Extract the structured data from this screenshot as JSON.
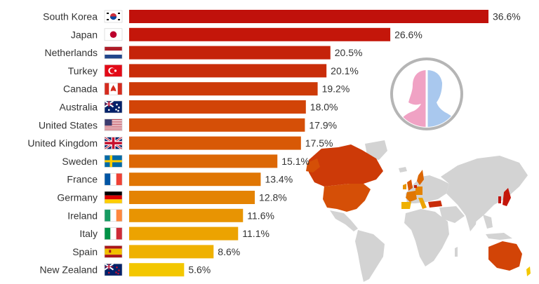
{
  "chart_data": {
    "type": "bar",
    "orientation": "horizontal",
    "title": "",
    "xlabel": "",
    "ylabel": "",
    "value_suffix": "%",
    "xlim": [
      0,
      36.6
    ],
    "grid": false,
    "legend": "none",
    "categories": [
      "South Korea",
      "Japan",
      "Netherlands",
      "Turkey",
      "Canada",
      "Australia",
      "United States",
      "United Kingdom",
      "Sweden",
      "France",
      "Germany",
      "Ireland",
      "Italy",
      "Spain",
      "New Zealand"
    ],
    "values": [
      36.6,
      26.6,
      20.5,
      20.1,
      19.2,
      18.0,
      17.9,
      17.5,
      15.1,
      13.4,
      12.8,
      11.6,
      11.1,
      8.6,
      5.6
    ],
    "value_labels": [
      "36.6%",
      "26.6%",
      "20.5%",
      "20.1%",
      "19.2%",
      "18.0%",
      "17.9%",
      "17.5%",
      "15.1%",
      "13.4%",
      "12.8%",
      "11.6%",
      "11.1%",
      "8.6%",
      "5.6%"
    ],
    "bar_colors": [
      "#c0110b",
      "#c4160a",
      "#c5230a",
      "#c92c09",
      "#cd3a08",
      "#d24407",
      "#d54f07",
      "#d85906",
      "#dc6705",
      "#e07604",
      "#e48303",
      "#e89402",
      "#eca301",
      "#efb100",
      "#f3c700"
    ],
    "flags": [
      "south-korea-flag",
      "japan-flag",
      "netherlands-flag",
      "turkey-flag",
      "canada-flag",
      "australia-flag",
      "united-states-flag",
      "united-kingdom-flag",
      "sweden-flag",
      "france-flag",
      "germany-flag",
      "ireland-flag",
      "italy-flag",
      "spain-flag",
      "new-zealand-flag"
    ]
  },
  "illustration": {
    "icon": "gender-split-head-icon",
    "female_color": "#f0a2c4",
    "male_color": "#a9c8ee",
    "ring_color": "#b5b5b5"
  },
  "map": {
    "icon": "world-map-icon",
    "land_color": "#d3d3d3"
  }
}
